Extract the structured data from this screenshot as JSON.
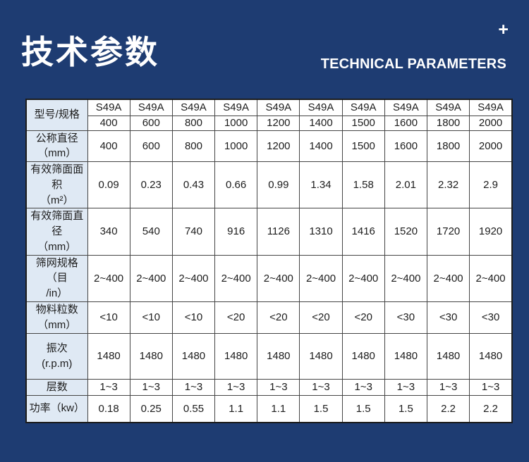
{
  "header": {
    "title_cn": "技术参数",
    "title_en": "TECHNICAL PARAMETERS",
    "plus_icon": "+"
  },
  "colors": {
    "background": "#1e3c72",
    "label_cell_bg": "#dfe9f4",
    "cell_bg": "#ffffff",
    "border": "#454545",
    "outer_border": "#1c1c1c",
    "text": "#1c1c1c",
    "header_text": "#ffffff"
  },
  "table": {
    "model_row": {
      "label": "型号/规格",
      "series": [
        "S49A",
        "S49A",
        "S49A",
        "S49A",
        "S49A",
        "S49A",
        "S49A",
        "S49A",
        "S49A",
        "S49A"
      ],
      "sizes": [
        "400",
        "600",
        "800",
        "1000",
        "1200",
        "1400",
        "1500",
        "1600",
        "1800",
        "2000"
      ]
    },
    "rows": [
      {
        "label": "公称直径\n（mm）",
        "values": [
          "400",
          "600",
          "800",
          "1000",
          "1200",
          "1400",
          "1500",
          "1600",
          "1800",
          "2000"
        ]
      },
      {
        "label": "有效筛面面积\n（m²）",
        "values": [
          "0.09",
          "0.23",
          "0.43",
          "0.66",
          "0.99",
          "1.34",
          "1.58",
          "2.01",
          "2.32",
          "2.9"
        ]
      },
      {
        "label": "有效筛面直径\n（mm）",
        "values": [
          "340",
          "540",
          "740",
          "916",
          "1126",
          "1310",
          "1416",
          "1520",
          "1720",
          "1920"
        ]
      },
      {
        "label": "筛网规格（目\n/in）",
        "values": [
          "2~400",
          "2~400",
          "2~400",
          "2~400",
          "2~400",
          "2~400",
          "2~400",
          "2~400",
          "2~400",
          "2~400"
        ]
      },
      {
        "label": "物料粒数\n（mm）",
        "values": [
          "<10",
          "<10",
          "<10",
          "<20",
          "<20",
          "<20",
          "<20",
          "<30",
          "<30",
          "<30"
        ]
      },
      {
        "label": "振次\n(r.p.m)",
        "values": [
          "1480",
          "1480",
          "1480",
          "1480",
          "1480",
          "1480",
          "1480",
          "1480",
          "1480",
          "1480"
        ]
      },
      {
        "label": "层数",
        "values": [
          "1~3",
          "1~3",
          "1~3",
          "1~3",
          "1~3",
          "1~3",
          "1~3",
          "1~3",
          "1~3",
          "1~3"
        ]
      },
      {
        "label": "功率（kw）",
        "values": [
          "0.18",
          "0.25",
          "0.55",
          "1.1",
          "1.1",
          "1.5",
          "1.5",
          "1.5",
          "2.2",
          "2.2"
        ]
      }
    ]
  }
}
